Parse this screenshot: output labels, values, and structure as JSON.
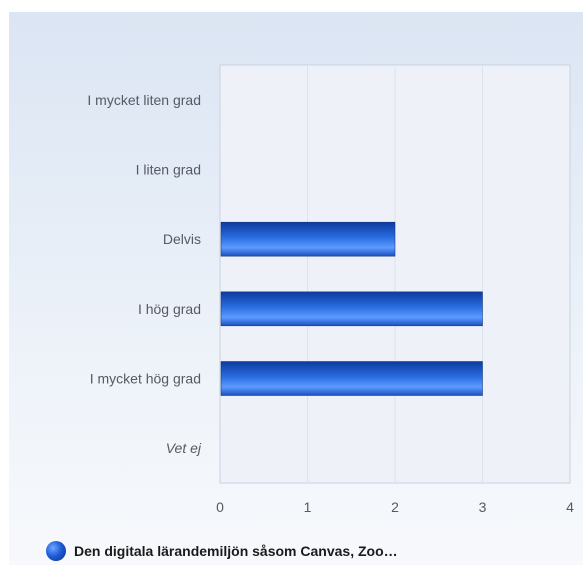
{
  "chart_data": {
    "type": "bar",
    "orientation": "horizontal",
    "categories": [
      "I mycket liten grad",
      "I liten grad",
      "Delvis",
      "I hög grad",
      "I mycket hög grad",
      "Vet ej"
    ],
    "series": [
      {
        "name": "Den digitala lärandemiljön såsom Canvas, Zoo…",
        "values": [
          0,
          0,
          2,
          3,
          3,
          0
        ]
      }
    ],
    "xlim": [
      0,
      4
    ],
    "xticks": [
      "0",
      "1",
      "2",
      "3",
      "4"
    ],
    "grid": true,
    "legend": "bottom-left",
    "colors": {
      "bar": "#2a6de0",
      "bar_dark": "#0d3a9e",
      "grid": "#dde3ec",
      "axis": "#c9d2df"
    }
  }
}
